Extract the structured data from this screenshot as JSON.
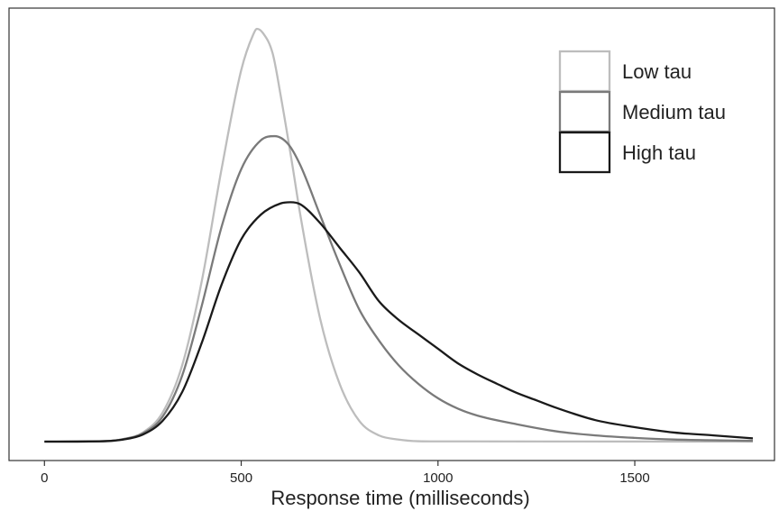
{
  "chart_data": {
    "type": "line",
    "xlabel": "Response time (milliseconds)",
    "ylabel": "",
    "xlim": [
      -90,
      1855
    ],
    "ylim": [
      0,
      1.0
    ],
    "xticks": [
      0,
      500,
      1000,
      1500
    ],
    "grid": false,
    "legend_position": "top-right",
    "series": [
      {
        "name": "Low tau",
        "color": "#bdbdbd",
        "points": [
          [
            0,
            0
          ],
          [
            150,
            0.001
          ],
          [
            200,
            0.006
          ],
          [
            250,
            0.022
          ],
          [
            300,
            0.07
          ],
          [
            350,
            0.185
          ],
          [
            400,
            0.39
          ],
          [
            450,
            0.66
          ],
          [
            500,
            0.9
          ],
          [
            530,
            0.985
          ],
          [
            540,
            1.0
          ],
          [
            555,
            0.99
          ],
          [
            580,
            0.94
          ],
          [
            600,
            0.84
          ],
          [
            630,
            0.67
          ],
          [
            650,
            0.55
          ],
          [
            700,
            0.3
          ],
          [
            750,
            0.14
          ],
          [
            800,
            0.05
          ],
          [
            850,
            0.015
          ],
          [
            900,
            0.005
          ],
          [
            950,
            0.001
          ],
          [
            1000,
            0.0005
          ],
          [
            1800,
            0
          ]
        ]
      },
      {
        "name": "Medium tau",
        "color": "#7a7a7a",
        "points": [
          [
            0,
            0
          ],
          [
            150,
            0.001
          ],
          [
            200,
            0.006
          ],
          [
            250,
            0.02
          ],
          [
            300,
            0.06
          ],
          [
            350,
            0.16
          ],
          [
            400,
            0.33
          ],
          [
            450,
            0.52
          ],
          [
            500,
            0.66
          ],
          [
            550,
            0.73
          ],
          [
            585,
            0.74
          ],
          [
            620,
            0.72
          ],
          [
            650,
            0.67
          ],
          [
            700,
            0.55
          ],
          [
            750,
            0.43
          ],
          [
            800,
            0.32
          ],
          [
            850,
            0.245
          ],
          [
            900,
            0.185
          ],
          [
            950,
            0.14
          ],
          [
            1000,
            0.105
          ],
          [
            1050,
            0.08
          ],
          [
            1100,
            0.063
          ],
          [
            1200,
            0.042
          ],
          [
            1300,
            0.025
          ],
          [
            1400,
            0.015
          ],
          [
            1500,
            0.009
          ],
          [
            1600,
            0.005
          ],
          [
            1800,
            0.002
          ]
        ]
      },
      {
        "name": "High tau",
        "color": "#1a1a1a",
        "points": [
          [
            0,
            0
          ],
          [
            150,
            0.001
          ],
          [
            200,
            0.005
          ],
          [
            250,
            0.017
          ],
          [
            300,
            0.05
          ],
          [
            350,
            0.12
          ],
          [
            400,
            0.24
          ],
          [
            450,
            0.38
          ],
          [
            500,
            0.49
          ],
          [
            550,
            0.55
          ],
          [
            600,
            0.577
          ],
          [
            625,
            0.58
          ],
          [
            650,
            0.575
          ],
          [
            700,
            0.53
          ],
          [
            750,
            0.47
          ],
          [
            800,
            0.41
          ],
          [
            850,
            0.34
          ],
          [
            900,
            0.295
          ],
          [
            950,
            0.26
          ],
          [
            1000,
            0.225
          ],
          [
            1050,
            0.19
          ],
          [
            1100,
            0.163
          ],
          [
            1150,
            0.14
          ],
          [
            1200,
            0.118
          ],
          [
            1250,
            0.1
          ],
          [
            1300,
            0.082
          ],
          [
            1400,
            0.052
          ],
          [
            1500,
            0.035
          ],
          [
            1600,
            0.022
          ],
          [
            1700,
            0.015
          ],
          [
            1800,
            0.008
          ]
        ]
      }
    ]
  }
}
